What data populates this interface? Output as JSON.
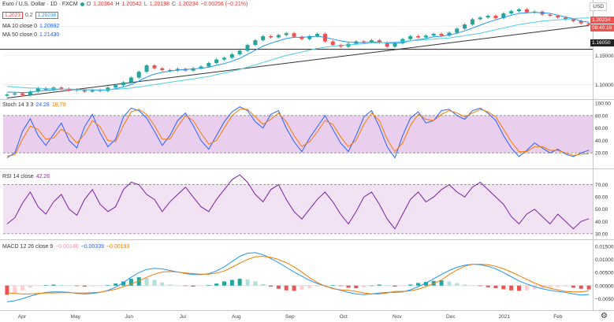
{
  "header": {
    "symbol_title": "Euro / U.S. Dollar · 1D · FXCM",
    "ohlc": {
      "o_label": "O",
      "o": "1.20364",
      "h_label": "H",
      "h": "1.20542",
      "l_label": "L",
      "l": "1.20198",
      "c_label": "C",
      "c": "1.20234",
      "change": "−0.00256 (−0.21%)"
    },
    "bid_box": "1.2023",
    "spread": "0.2",
    "ask_box": "1.20236",
    "currency_badge": "USD"
  },
  "indicators": {
    "ma10": {
      "label": "MA 10 close 0",
      "value": "1.20692"
    },
    "ma50": {
      "label": "MA 50 close 0",
      "value": "1.21430"
    },
    "stoch": {
      "label": "Stoch 14 3 3",
      "k": "24.28",
      "d": "18.70"
    },
    "rsi": {
      "label": "RSI 14 close",
      "value": "42.26"
    },
    "macd": {
      "label": "MACD 12 26 close 9",
      "hist": "−0.00146",
      "macd": "−0.00339",
      "signal": "−0.00193"
    }
  },
  "price_tags": {
    "last": "1.20234",
    "countdown": "08:40:16",
    "level": "1.16050"
  },
  "colors": {
    "up": "#26a69a",
    "down": "#ef5350",
    "ma10": "#2196f3",
    "ma50": "#4dd0e1",
    "stoch_k": "#2962ff",
    "stoch_d": "#f57c00",
    "rsi": "#7b1fa2",
    "macd": "#2196f3",
    "signal": "#f57c00",
    "band": "#e1bee7",
    "trendline": "#333333"
  },
  "chart_data": [
    {
      "type": "candlestick",
      "title": "Euro / U.S. Dollar · 1D · FXCM",
      "x_ticks": [
        "Apr",
        "May",
        "Jun",
        "Jul",
        "Aug",
        "Sep",
        "Oct",
        "Nov",
        "Dec",
        "2021",
        "Feb"
      ],
      "y_ticks": [
        "1.10000",
        "1.15000",
        "1.16050",
        "1.20000"
      ],
      "ylim": [
        1.075,
        1.245
      ],
      "series": [
        {
          "name": "Close",
          "values": [
            1.083,
            1.085,
            1.082,
            1.088,
            1.094,
            1.091,
            1.095,
            1.093,
            1.09,
            1.092,
            1.088,
            1.091,
            1.089,
            1.095,
            1.099,
            1.104,
            1.112,
            1.122,
            1.133,
            1.128,
            1.125,
            1.124,
            1.127,
            1.124,
            1.128,
            1.131,
            1.137,
            1.143,
            1.146,
            1.152,
            1.158,
            1.168,
            1.176,
            1.183,
            1.181,
            1.185,
            1.188,
            1.182,
            1.178,
            1.183,
            1.187,
            1.174,
            1.168,
            1.165,
            1.17,
            1.174,
            1.173,
            1.176,
            1.172,
            1.165,
            1.171,
            1.178,
            1.183,
            1.181,
            1.184,
            1.187,
            1.184,
            1.189,
            1.196,
            1.203,
            1.212,
            1.215,
            1.218,
            1.214,
            1.222,
            1.226,
            1.229,
            1.224,
            1.225,
            1.22,
            1.218,
            1.215,
            1.212,
            1.209,
            1.205,
            1.2023
          ]
        },
        {
          "name": "MA 10 close 0",
          "values": [
            1.087,
            1.087,
            1.086,
            1.087,
            1.089,
            1.09,
            1.091,
            1.092,
            1.092,
            1.092,
            1.091,
            1.091,
            1.09,
            1.091,
            1.093,
            1.096,
            1.1,
            1.106,
            1.113,
            1.118,
            1.121,
            1.123,
            1.125,
            1.126,
            1.127,
            1.128,
            1.13,
            1.133,
            1.136,
            1.14,
            1.145,
            1.152,
            1.159,
            1.166,
            1.171,
            1.175,
            1.179,
            1.181,
            1.181,
            1.182,
            1.183,
            1.181,
            1.178,
            1.175,
            1.173,
            1.172,
            1.172,
            1.173,
            1.173,
            1.171,
            1.171,
            1.172,
            1.175,
            1.177,
            1.179,
            1.182,
            1.183,
            1.185,
            1.188,
            1.192,
            1.197,
            1.202,
            1.207,
            1.211,
            1.215,
            1.219,
            1.222,
            1.223,
            1.224,
            1.223,
            1.222,
            1.219,
            1.216,
            1.213,
            1.209,
            1.20692
          ]
        },
        {
          "name": "MA 50 close 0",
          "values": [
            1.097,
            1.096,
            1.095,
            1.094,
            1.094,
            1.093,
            1.093,
            1.092,
            1.092,
            1.091,
            1.091,
            1.091,
            1.091,
            1.091,
            1.092,
            1.093,
            1.094,
            1.096,
            1.098,
            1.1,
            1.102,
            1.104,
            1.106,
            1.108,
            1.11,
            1.112,
            1.114,
            1.117,
            1.12,
            1.123,
            1.126,
            1.13,
            1.134,
            1.138,
            1.142,
            1.146,
            1.15,
            1.153,
            1.156,
            1.159,
            1.162,
            1.164,
            1.166,
            1.167,
            1.168,
            1.169,
            1.17,
            1.171,
            1.172,
            1.172,
            1.173,
            1.174,
            1.175,
            1.176,
            1.177,
            1.178,
            1.179,
            1.18,
            1.182,
            1.184,
            1.186,
            1.188,
            1.191,
            1.194,
            1.197,
            1.2,
            1.203,
            1.205,
            1.207,
            1.209,
            1.21,
            1.211,
            1.212,
            1.213,
            1.214,
            1.2143
          ]
        }
      ]
    },
    {
      "type": "line",
      "title": "Stoch 14 3 3",
      "y_ticks": [
        20.0,
        40.0,
        60.0,
        80.0,
        100.0
      ],
      "ylim": [
        0,
        100
      ],
      "band": [
        20,
        80
      ],
      "series": [
        {
          "name": "%K",
          "values": [
            12,
            20,
            55,
            75,
            48,
            32,
            50,
            68,
            40,
            28,
            62,
            82,
            52,
            30,
            42,
            78,
            92,
            88,
            76,
            55,
            32,
            48,
            72,
            84,
            64,
            40,
            26,
            48,
            70,
            86,
            94,
            88,
            70,
            60,
            82,
            88,
            60,
            38,
            22,
            44,
            62,
            80,
            58,
            36,
            22,
            48,
            78,
            88,
            62,
            30,
            12,
            48,
            76,
            86,
            68,
            72,
            88,
            90,
            80,
            74,
            88,
            92,
            84,
            72,
            48,
            28,
            14,
            24,
            36,
            28,
            20,
            26,
            18,
            14,
            20,
            24.28
          ]
        },
        {
          "name": "%D",
          "values": [
            15,
            17,
            42,
            63,
            58,
            42,
            44,
            58,
            50,
            36,
            50,
            72,
            62,
            40,
            38,
            64,
            86,
            90,
            82,
            64,
            42,
            42,
            62,
            80,
            72,
            52,
            34,
            40,
            60,
            80,
            90,
            90,
            78,
            66,
            74,
            84,
            70,
            48,
            30,
            38,
            54,
            72,
            66,
            46,
            30,
            40,
            66,
            84,
            72,
            42,
            22,
            36,
            64,
            82,
            74,
            72,
            82,
            88,
            84,
            78,
            84,
            90,
            86,
            78,
            58,
            38,
            22,
            22,
            30,
            30,
            24,
            24,
            20,
            16,
            18,
            18.7
          ]
        }
      ]
    },
    {
      "type": "line",
      "title": "RSI 14 close",
      "y_ticks": [
        30.0,
        40.0,
        50.0,
        60.0,
        70.0
      ],
      "ylim": [
        28,
        80
      ],
      "band": [
        30,
        70
      ],
      "series": [
        {
          "name": "RSI",
          "values": [
            38,
            43,
            55,
            64,
            52,
            46,
            56,
            62,
            50,
            45,
            58,
            66,
            54,
            48,
            52,
            66,
            72,
            70,
            62,
            58,
            48,
            56,
            62,
            68,
            60,
            52,
            48,
            58,
            66,
            74,
            78,
            72,
            62,
            56,
            66,
            70,
            58,
            48,
            42,
            50,
            58,
            64,
            56,
            46,
            38,
            48,
            60,
            64,
            54,
            42,
            34,
            46,
            58,
            64,
            56,
            60,
            66,
            70,
            64,
            60,
            68,
            72,
            66,
            60,
            54,
            44,
            38,
            46,
            50,
            44,
            38,
            46,
            40,
            34,
            40,
            42.26
          ]
        }
      ]
    },
    {
      "type": "bar",
      "title": "MACD 12 26 close 9",
      "y_ticks": [
        -0.005,
        0.0,
        0.005,
        0.01,
        0.015
      ],
      "ylim": [
        -0.0085,
        0.0165
      ],
      "series": [
        {
          "name": "Histogram",
          "values": [
            -0.0035,
            -0.0028,
            -0.0018,
            -0.0008,
            -0.0002,
            0.0002,
            0.0004,
            0.0003,
            0.0001,
            -0.0002,
            -0.0004,
            -0.0003,
            -0.0001,
            0.0002,
            0.0008,
            0.0016,
            0.0026,
            0.0032,
            0.003,
            0.0022,
            0.0012,
            0.0004,
            0.0,
            -0.0002,
            -0.0004,
            -0.0002,
            0.0002,
            0.0008,
            0.0016,
            0.0022,
            0.0026,
            0.0024,
            0.0016,
            0.0006,
            -0.0004,
            -0.0012,
            -0.0018,
            -0.002,
            -0.0016,
            -0.001,
            -0.0004,
            0.0,
            0.0002,
            -0.0002,
            -0.0008,
            -0.001,
            -0.0006,
            0.0,
            0.0004,
            0.0002,
            -0.0004,
            -0.0002,
            0.0004,
            0.001,
            0.0014,
            0.0018,
            0.002,
            0.0016,
            0.001,
            0.0004,
            0.0,
            -0.0002,
            -0.0006,
            -0.001,
            -0.0014,
            -0.0018,
            -0.002,
            -0.0018,
            -0.0014,
            -0.001,
            -0.0008,
            -0.0006,
            -0.0004,
            -0.0008,
            -0.0012,
            -0.00146
          ]
        },
        {
          "name": "MACD",
          "values": [
            -0.0062,
            -0.0058,
            -0.005,
            -0.004,
            -0.0032,
            -0.0026,
            -0.0024,
            -0.0024,
            -0.0026,
            -0.003,
            -0.0032,
            -0.003,
            -0.0026,
            -0.0018,
            -0.0006,
            0.0012,
            0.0032,
            0.005,
            0.0062,
            0.0066,
            0.0064,
            0.0058,
            0.0052,
            0.0046,
            0.0042,
            0.0042,
            0.0046,
            0.0056,
            0.0072,
            0.0092,
            0.0112,
            0.0124,
            0.0126,
            0.0118,
            0.0104,
            0.0088,
            0.007,
            0.0052,
            0.0036,
            0.002,
            0.0008,
            -0.0002,
            -0.001,
            -0.0018,
            -0.0026,
            -0.0032,
            -0.0034,
            -0.0032,
            -0.0028,
            -0.0026,
            -0.0026,
            -0.0024,
            -0.0016,
            -0.0004,
            0.001,
            0.0026,
            0.0042,
            0.0058,
            0.007,
            0.0078,
            0.0082,
            0.008,
            0.0074,
            0.0064,
            0.005,
            0.0034,
            0.0018,
            0.0006,
            -0.0004,
            -0.0012,
            -0.0018,
            -0.0022,
            -0.0026,
            -0.0032,
            -0.0036,
            -0.00339
          ]
        },
        {
          "name": "Signal",
          "values": [
            -0.0027,
            -0.003,
            -0.0032,
            -0.0032,
            -0.003,
            -0.0028,
            -0.0028,
            -0.0027,
            -0.0027,
            -0.0028,
            -0.0028,
            -0.0027,
            -0.0025,
            -0.002,
            -0.0014,
            -0.0004,
            0.0006,
            0.0018,
            0.0032,
            0.0044,
            0.0052,
            0.0054,
            0.0052,
            0.0048,
            0.0046,
            0.0044,
            0.0044,
            0.0048,
            0.0056,
            0.007,
            0.0086,
            0.01,
            0.011,
            0.0112,
            0.0108,
            0.01,
            0.0088,
            0.0072,
            0.0052,
            0.003,
            0.0012,
            -0.0002,
            -0.0012,
            -0.0016,
            -0.0018,
            -0.0022,
            -0.0028,
            -0.0032,
            -0.0032,
            -0.0028,
            -0.0022,
            -0.0022,
            -0.002,
            -0.0014,
            -0.0004,
            0.0008,
            0.0022,
            0.0042,
            0.006,
            0.0074,
            0.0082,
            0.0082,
            0.008,
            0.0074,
            0.0064,
            0.0052,
            0.0038,
            0.0024,
            0.001,
            -0.0002,
            -0.001,
            -0.0016,
            -0.0022,
            -0.0024,
            -0.0024,
            -0.00193
          ]
        }
      ]
    }
  ]
}
